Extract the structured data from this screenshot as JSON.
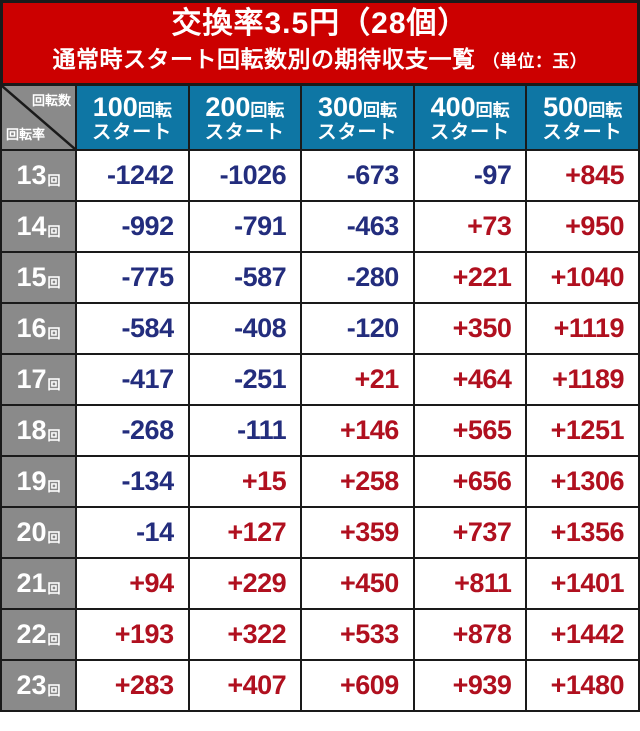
{
  "header": {
    "title": "交換率3.5円（28個）",
    "subtitle_main": "通常時スタート回転数別の期待収支一覧",
    "subtitle_unit": "（単位：玉）"
  },
  "table": {
    "corner": {
      "top": "回転数",
      "bottom": "回転率"
    },
    "columns": [
      {
        "num": "100",
        "suffix": "回転",
        "line2": "スタート"
      },
      {
        "num": "200",
        "suffix": "回転",
        "line2": "スタート"
      },
      {
        "num": "300",
        "suffix": "回転",
        "line2": "スタート"
      },
      {
        "num": "400",
        "suffix": "回転",
        "line2": "スタート"
      },
      {
        "num": "500",
        "suffix": "回転",
        "line2": "スタート"
      }
    ],
    "rows": [
      {
        "label": "13",
        "suffix": "回",
        "values": [
          "-1242",
          "-1026",
          "-673",
          "-97",
          "+845"
        ]
      },
      {
        "label": "14",
        "suffix": "回",
        "values": [
          "-992",
          "-791",
          "-463",
          "+73",
          "+950"
        ]
      },
      {
        "label": "15",
        "suffix": "回",
        "values": [
          "-775",
          "-587",
          "-280",
          "+221",
          "+1040"
        ]
      },
      {
        "label": "16",
        "suffix": "回",
        "values": [
          "-584",
          "-408",
          "-120",
          "+350",
          "+1119"
        ]
      },
      {
        "label": "17",
        "suffix": "回",
        "values": [
          "-417",
          "-251",
          "+21",
          "+464",
          "+1189"
        ]
      },
      {
        "label": "18",
        "suffix": "回",
        "values": [
          "-268",
          "-111",
          "+146",
          "+565",
          "+1251"
        ]
      },
      {
        "label": "19",
        "suffix": "回",
        "values": [
          "-134",
          "+15",
          "+258",
          "+656",
          "+1306"
        ]
      },
      {
        "label": "20",
        "suffix": "回",
        "values": [
          "-14",
          "+127",
          "+359",
          "+737",
          "+1356"
        ]
      },
      {
        "label": "21",
        "suffix": "回",
        "values": [
          "+94",
          "+229",
          "+450",
          "+811",
          "+1401"
        ]
      },
      {
        "label": "22",
        "suffix": "回",
        "values": [
          "+193",
          "+322",
          "+533",
          "+878",
          "+1442"
        ]
      },
      {
        "label": "23",
        "suffix": "回",
        "values": [
          "+283",
          "+407",
          "+609",
          "+939",
          "+1480"
        ]
      }
    ]
  },
  "colors": {
    "header_bg": "#cc0000",
    "column_header_bg": "#0e76a4",
    "row_label_bg": "#8a8a8a",
    "grid_line": "#1a1a1a",
    "negative_value": "#232d7d",
    "positive_value": "#b0101f"
  },
  "chart_data": {
    "type": "table",
    "title": "交換率3.5円（28個）",
    "subtitle": "通常時スタート回転数別の期待収支一覧（単位：玉）",
    "corner_top_label": "回転数",
    "corner_bottom_label": "回転率",
    "columns": [
      "100回転スタート",
      "200回転スタート",
      "300回転スタート",
      "400回転スタート",
      "500回転スタート"
    ],
    "rows": [
      "13回",
      "14回",
      "15回",
      "16回",
      "17回",
      "18回",
      "19回",
      "20回",
      "21回",
      "22回",
      "23回"
    ],
    "values": [
      [
        -1242,
        -1026,
        -673,
        -97,
        845
      ],
      [
        -992,
        -791,
        -463,
        73,
        950
      ],
      [
        -775,
        -587,
        -280,
        221,
        1040
      ],
      [
        -584,
        -408,
        -120,
        350,
        1119
      ],
      [
        -417,
        -251,
        21,
        464,
        1189
      ],
      [
        -268,
        -111,
        146,
        565,
        1251
      ],
      [
        -134,
        15,
        258,
        656,
        1306
      ],
      [
        -14,
        127,
        359,
        737,
        1356
      ],
      [
        94,
        229,
        450,
        811,
        1401
      ],
      [
        193,
        322,
        533,
        878,
        1442
      ],
      [
        283,
        407,
        609,
        939,
        1480
      ]
    ]
  }
}
